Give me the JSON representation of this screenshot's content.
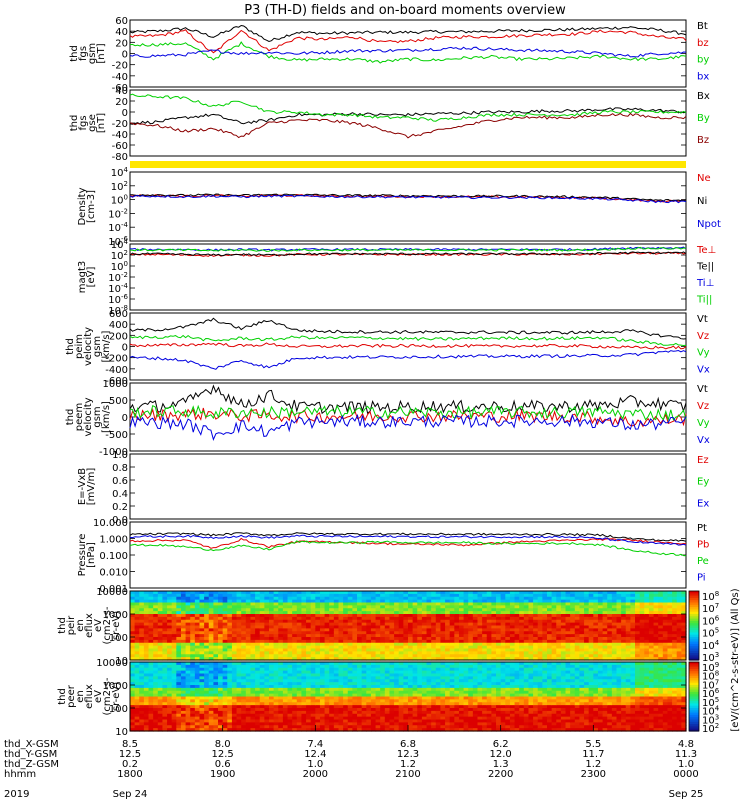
{
  "title": "P3 (TH-D) fields and on-board moments overview",
  "colors": {
    "black": "#000000",
    "red": "#e00000",
    "green": "#00d000",
    "blue": "#0000e0",
    "dark_red": "#8b0000",
    "yellow": "#ffe600"
  },
  "colorbar_label": "[eV/(cm^2-s-str-eV)] (All Qs)",
  "chart_data": [
    {
      "id": "fgs_gsm",
      "type": "line",
      "ylabel": [
        "thd",
        "fgs",
        "gsm",
        "[nT]"
      ],
      "yticks": [
        "60",
        "40",
        "20",
        "0",
        "-20",
        "-40",
        "-60"
      ],
      "ylim": [
        -60,
        60
      ],
      "series": [
        {
          "name": "Bt",
          "color": "black",
          "values": [
            38,
            40,
            45,
            30,
            50,
            22,
            38,
            36,
            37,
            38,
            38,
            39,
            39,
            40,
            41,
            42,
            43,
            45,
            47,
            42,
            35
          ]
        },
        {
          "name": "bz",
          "color": "red",
          "values": [
            30,
            32,
            40,
            0,
            42,
            5,
            28,
            25,
            30,
            20,
            22,
            28,
            30,
            30,
            32,
            34,
            35,
            40,
            38,
            30,
            25
          ]
        },
        {
          "name": "by",
          "color": "green",
          "values": [
            15,
            16,
            18,
            -10,
            18,
            -5,
            -12,
            -10,
            -10,
            -15,
            -10,
            -12,
            -8,
            -6,
            -10,
            -10,
            -8,
            -5,
            -10,
            -10,
            -5
          ]
        },
        {
          "name": "bx",
          "color": "blue",
          "values": [
            -5,
            -4,
            -2,
            5,
            0,
            2,
            0,
            2,
            5,
            5,
            6,
            8,
            10,
            8,
            6,
            5,
            3,
            0,
            -5,
            0,
            2
          ]
        }
      ]
    },
    {
      "id": "fgs_gse",
      "type": "line",
      "ylabel": [
        "thd",
        "fgs",
        "gse",
        "[nT]"
      ],
      "yticks": [
        "40",
        "20",
        "0",
        "-20",
        "-40",
        "-60",
        "-80"
      ],
      "ylim": [
        -80,
        40
      ],
      "series": [
        {
          "name": "Bx",
          "color": "black",
          "values": [
            -20,
            -18,
            -10,
            -5,
            -20,
            -15,
            -5,
            -5,
            -3,
            -5,
            -5,
            -3,
            -2,
            0,
            0,
            2,
            2,
            5,
            5,
            3,
            0
          ]
        },
        {
          "name": "By",
          "color": "green",
          "values": [
            30,
            28,
            25,
            10,
            20,
            0,
            0,
            -5,
            -5,
            -10,
            -10,
            -15,
            -10,
            -5,
            -5,
            -5,
            -5,
            0,
            0,
            0,
            0
          ]
        },
        {
          "name": "Bz",
          "color": "dark_red",
          "values": [
            -20,
            -25,
            -35,
            -30,
            -45,
            -20,
            -15,
            -15,
            -20,
            -30,
            -45,
            -35,
            -25,
            -15,
            -10,
            -10,
            -10,
            -5,
            -5,
            -10,
            -10
          ]
        }
      ]
    },
    {
      "id": "density",
      "type": "line",
      "ylabel": [
        "Density",
        "[cm-3]"
      ],
      "yticks": [
        "10^4",
        "10^2",
        "10^0",
        "10^-2",
        "10^-4",
        "10^-6"
      ],
      "ylog": true,
      "ylim": [
        -6,
        4
      ],
      "series": [
        {
          "name": "Ne",
          "color": "red",
          "values": [
            0.6,
            0.6,
            0.5,
            0.6,
            0.5,
            0.6,
            0.6,
            0.55,
            0.5,
            0.5,
            0.45,
            0.45,
            0.4,
            0.4,
            0.4,
            0.35,
            0.3,
            0.2,
            0.0,
            -0.2,
            -0.2
          ]
        },
        {
          "name": "Ni",
          "color": "black",
          "values": [
            0.7,
            0.7,
            0.6,
            0.7,
            0.6,
            0.7,
            0.7,
            0.65,
            0.6,
            0.6,
            0.55,
            0.55,
            0.5,
            0.5,
            0.5,
            0.45,
            0.4,
            0.3,
            0.1,
            -0.1,
            -0.1
          ]
        },
        {
          "name": "Npot",
          "color": "blue",
          "values": [
            0.5,
            0.5,
            0.4,
            0.5,
            0.4,
            0.5,
            0.5,
            0.45,
            0.4,
            0.4,
            0.35,
            0.35,
            0.3,
            0.3,
            0.3,
            0.25,
            0.2,
            0.1,
            -0.1,
            -0.3,
            -0.3
          ]
        }
      ]
    },
    {
      "id": "temperature",
      "type": "line",
      "ylabel": [
        "magt3",
        "[eV]"
      ],
      "yticks": [
        "10^4",
        "10^2",
        "10^0",
        "10^-2",
        "10^-4",
        "10^-6",
        "10^-8"
      ],
      "ylog": true,
      "ylim": [
        -8,
        4
      ],
      "series": [
        {
          "name": "Te⊥",
          "color": "red",
          "values": [
            2.1,
            2.1,
            2.0,
            1.9,
            2.0,
            1.9,
            2.1,
            2.1,
            2.1,
            2.1,
            2.1,
            2.1,
            2.1,
            2.1,
            2.1,
            2.1,
            2.1,
            2.2,
            2.3,
            2.3,
            2.3
          ]
        },
        {
          "name": "Te||",
          "color": "black",
          "values": [
            2.2,
            2.2,
            2.1,
            2.0,
            2.1,
            2.0,
            2.2,
            2.2,
            2.2,
            2.2,
            2.2,
            2.2,
            2.2,
            2.2,
            2.2,
            2.2,
            2.2,
            2.3,
            2.4,
            2.4,
            2.4
          ]
        },
        {
          "name": "Ti⊥",
          "color": "blue",
          "values": [
            3.0,
            3.0,
            3.0,
            2.9,
            3.0,
            2.9,
            3.0,
            3.0,
            3.0,
            3.0,
            3.0,
            3.0,
            3.0,
            3.0,
            3.0,
            3.0,
            3.0,
            3.1,
            3.3,
            3.3,
            3.3
          ]
        },
        {
          "name": "Ti||",
          "color": "green",
          "values": [
            2.9,
            2.9,
            2.9,
            2.8,
            2.9,
            2.8,
            2.9,
            2.9,
            2.9,
            2.9,
            2.9,
            2.9,
            2.9,
            2.9,
            2.9,
            2.9,
            2.9,
            3.0,
            3.2,
            3.2,
            3.2
          ]
        }
      ]
    },
    {
      "id": "ion_velocity",
      "type": "line",
      "ylabel": [
        "thd",
        "peim",
        "velocity",
        "gsm",
        "[km/s]"
      ],
      "yticks": [
        "600",
        "400",
        "200",
        "0",
        "-200",
        "-400",
        "-600"
      ],
      "ylim": [
        -600,
        600
      ],
      "series": [
        {
          "name": "Vt",
          "color": "black",
          "values": [
            290,
            300,
            350,
            480,
            320,
            470,
            290,
            270,
            265,
            260,
            260,
            255,
            255,
            255,
            250,
            250,
            250,
            260,
            280,
            200,
            150
          ]
        },
        {
          "name": "Vz",
          "color": "red",
          "values": [
            20,
            20,
            30,
            50,
            10,
            40,
            0,
            0,
            10,
            10,
            10,
            10,
            10,
            5,
            10,
            10,
            10,
            0,
            -20,
            -20,
            -20
          ]
        },
        {
          "name": "Vy",
          "color": "green",
          "values": [
            160,
            170,
            180,
            100,
            150,
            120,
            170,
            150,
            160,
            150,
            140,
            130,
            140,
            150,
            150,
            140,
            150,
            160,
            100,
            50,
            30
          ]
        },
        {
          "name": "Vx",
          "color": "blue",
          "values": [
            -200,
            -210,
            -250,
            -400,
            -250,
            -380,
            -200,
            -195,
            -190,
            -190,
            -185,
            -180,
            -180,
            -175,
            -175,
            -170,
            -170,
            -160,
            -150,
            -100,
            -80
          ]
        }
      ]
    },
    {
      "id": "electron_velocity",
      "type": "line",
      "ylabel": [
        "thd",
        "peem",
        "velocity",
        "gsm",
        "[km/s]"
      ],
      "yticks": [
        "1000",
        "500",
        "0",
        "-500",
        "-1000"
      ],
      "ylim": [
        -1000,
        1000
      ],
      "series": [
        {
          "name": "Vt",
          "color": "black",
          "values": [
            300,
            320,
            400,
            900,
            350,
            650,
            300,
            280,
            290,
            280,
            300,
            320,
            300,
            320,
            300,
            310,
            320,
            350,
            450,
            400,
            300
          ]
        },
        {
          "name": "Vz",
          "color": "red",
          "values": [
            50,
            50,
            80,
            100,
            30,
            50,
            20,
            20,
            20,
            20,
            30,
            20,
            30,
            20,
            30,
            20,
            20,
            -50,
            -150,
            -100,
            -50
          ]
        },
        {
          "name": "Vy",
          "color": "green",
          "values": [
            150,
            160,
            180,
            100,
            150,
            130,
            160,
            150,
            150,
            140,
            140,
            130,
            130,
            140,
            140,
            130,
            140,
            150,
            100,
            80,
            50
          ]
        },
        {
          "name": "Vx",
          "color": "blue",
          "values": [
            -150,
            -160,
            -200,
            -500,
            -250,
            -450,
            -150,
            -140,
            -130,
            -140,
            -130,
            -120,
            -130,
            -120,
            -120,
            -110,
            -120,
            -150,
            -250,
            -200,
            -150
          ]
        }
      ]
    },
    {
      "id": "efield",
      "type": "line",
      "ylabel": [
        "E=-VxB",
        "[mV/m]"
      ],
      "yticks": [
        "1.0",
        "0.8",
        "0.6",
        "0.4",
        "0.2",
        "0.0"
      ],
      "ylim": [
        0,
        1
      ],
      "series": [
        {
          "name": "Ez",
          "color": "red",
          "values": []
        },
        {
          "name": "Ey",
          "color": "green",
          "values": []
        },
        {
          "name": "Ex",
          "color": "blue",
          "values": []
        }
      ]
    },
    {
      "id": "pressure",
      "type": "line",
      "ylabel": [
        "Pressure",
        "[nPa]"
      ],
      "yticks": [
        "10.000",
        "1.000",
        "0.100",
        "0.010",
        "0.001"
      ],
      "ylog": true,
      "ylim": [
        -3,
        1
      ],
      "series": [
        {
          "name": "Pt",
          "color": "black",
          "values": [
            0.25,
            0.27,
            0.3,
            0.2,
            0.32,
            0.2,
            0.3,
            0.28,
            0.27,
            0.27,
            0.27,
            0.26,
            0.26,
            0.25,
            0.25,
            0.25,
            0.24,
            0.2,
            0.0,
            -0.1,
            -0.15
          ]
        },
        {
          "name": "Pb",
          "color": "red",
          "values": [
            -0.15,
            -0.12,
            -0.1,
            -0.6,
            -0.05,
            -0.5,
            -0.2,
            -0.2,
            -0.25,
            -0.3,
            -0.35,
            -0.35,
            -0.4,
            -0.3,
            -0.2,
            -0.15,
            -0.1,
            -0.05,
            -0.1,
            -0.2,
            -0.3
          ]
        },
        {
          "name": "Pe",
          "color": "green",
          "values": [
            -0.4,
            -0.4,
            -0.5,
            -0.7,
            -0.45,
            -0.65,
            -0.2,
            -0.25,
            -0.25,
            -0.2,
            -0.25,
            -0.25,
            -0.25,
            -0.3,
            -0.3,
            -0.3,
            -0.3,
            -0.4,
            -0.7,
            -0.9,
            -1.0
          ]
        },
        {
          "name": "Pi",
          "color": "blue",
          "values": [
            0.1,
            0.12,
            0.15,
            0.05,
            0.15,
            0.05,
            0.15,
            0.13,
            0.12,
            0.12,
            0.12,
            0.1,
            0.1,
            0.1,
            0.1,
            0.1,
            0.08,
            0.0,
            -0.2,
            -0.3,
            -0.4
          ]
        }
      ]
    },
    {
      "id": "ion_spectrogram",
      "type": "heatmap",
      "ylabel": [
        "thd",
        "peir",
        "en",
        "eflux",
        "eV",
        "(cm2-s-",
        "sr-eV)"
      ],
      "yticks": [
        "10000",
        "1000",
        "100",
        "10"
      ],
      "ylog": true,
      "ylim": [
        1,
        4
      ],
      "colorbar_ticks": [
        "10^8",
        "10^7",
        "10^6",
        "10^5",
        "10^4",
        "10^3"
      ]
    },
    {
      "id": "electron_spectrogram",
      "type": "heatmap",
      "ylabel": [
        "thd",
        "peer",
        "en",
        "eflux",
        "eV",
        "(cm2-s-",
        "sr-eV)"
      ],
      "yticks": [
        "10000",
        "1000",
        "100",
        "10"
      ],
      "ylog": true,
      "ylim": [
        1,
        4
      ],
      "colorbar_ticks": [
        "10^9",
        "10^8",
        "10^7",
        "10^6",
        "10^5",
        "10^4",
        "10^3",
        "10^2"
      ]
    }
  ],
  "xaxis": {
    "rows": [
      {
        "label": "thd_X-GSM",
        "values": [
          "8.5",
          "8.0",
          "7.4",
          "6.8",
          "6.2",
          "5.5",
          "4.8"
        ]
      },
      {
        "label": "thd_Y-GSM",
        "values": [
          "12.5",
          "12.5",
          "12.4",
          "12.3",
          "12.0",
          "11.7",
          "11.3"
        ]
      },
      {
        "label": "thd_Z-GSM",
        "values": [
          "0.2",
          "0.6",
          "1.0",
          "1.2",
          "1.3",
          "1.2",
          "1.0"
        ]
      },
      {
        "label": "hhmm",
        "values": [
          "1800",
          "1900",
          "2000",
          "2100",
          "2200",
          "2300",
          "0000"
        ]
      }
    ],
    "date_label": "2019",
    "dates": [
      {
        "at": 0,
        "text": "Sep 24"
      },
      {
        "at": 6,
        "text": "Sep 25"
      }
    ]
  }
}
